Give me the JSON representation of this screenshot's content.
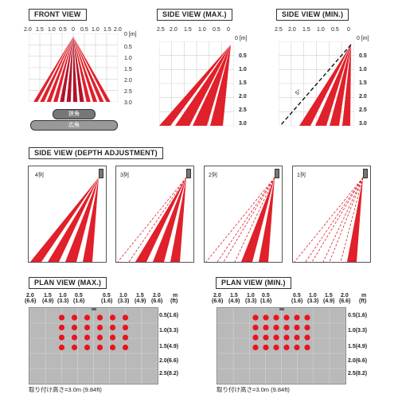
{
  "front_view": {
    "title": "FRONT VIEW",
    "x_ticks": [
      "2.0",
      "1.5",
      "1.0",
      "0.5",
      "0",
      "0.5",
      "1.0",
      "1.5",
      "2.0"
    ],
    "x_unit": "0 [m]",
    "y_ticks": [
      "0.5",
      "1.0",
      "1.5",
      "2.0",
      "2.5",
      "3.0"
    ],
    "narrow_label": "狭角",
    "wide_label": "広角"
  },
  "side_view_max": {
    "title": "SIDE VIEW (MAX.)",
    "x_ticks": [
      "2.5",
      "2.0",
      "1.5",
      "1.0",
      "0.5",
      "0"
    ],
    "x_unit": "0 [m]",
    "y_ticks": [
      "0.5",
      "1.0",
      "1.5",
      "2.0",
      "2.5",
      "3.0"
    ]
  },
  "side_view_min": {
    "title": "SIDE VIEW (MIN.)",
    "x_ticks": [
      "2.5",
      "2.0",
      "1.5",
      "1.0",
      "0.5",
      "0"
    ],
    "x_unit": "0 [m]",
    "y_ticks": [
      "0.5",
      "1.0",
      "1.5",
      "2.0",
      "2.5",
      "3.0"
    ],
    "angle_label": "5°"
  },
  "depth_adjustment": {
    "title": "SIDE VIEW (DEPTH ADJUSTMENT)",
    "panels": [
      {
        "label": "4列",
        "rows": 4
      },
      {
        "label": "3列",
        "rows": 3
      },
      {
        "label": "2列",
        "rows": 2
      },
      {
        "label": "1列",
        "rows": 1
      }
    ]
  },
  "plan_view_max": {
    "title": "PLAN VIEW (MAX.)",
    "x_ticks": [
      {
        "m": "2.0",
        "ft": "(6.6)"
      },
      {
        "m": "1.5",
        "ft": "(4.9)"
      },
      {
        "m": "1.0",
        "ft": "(3.3)"
      },
      {
        "m": "0.5",
        "ft": "(1.6)"
      },
      {
        "m": "0.5",
        "ft": "(1.6)"
      },
      {
        "m": "1.0",
        "ft": "(3.3)"
      },
      {
        "m": "1.5",
        "ft": "(4.9)"
      },
      {
        "m": "2.0",
        "ft": "(6.6)"
      }
    ],
    "unit_m": "m",
    "unit_ft": "(ft)",
    "y_ticks": [
      "0.5(1.6)",
      "1.0(3.3)",
      "1.5(4.9)",
      "2.0(6.6)",
      "2.5(8.2)"
    ],
    "dot_rows": [
      6,
      6,
      6,
      6
    ],
    "mount_height": "取り付け高さ=3.0m (9.84ft)"
  },
  "plan_view_min": {
    "title": "PLAN VIEW (MIN.)",
    "x_ticks": [
      {
        "m": "2.0",
        "ft": "(6.6)"
      },
      {
        "m": "1.5",
        "ft": "(4.9)"
      },
      {
        "m": "1.0",
        "ft": "(3.3)"
      },
      {
        "m": "0.5",
        "ft": "(1.6)"
      },
      {
        "m": "0.5",
        "ft": "(1.6)"
      },
      {
        "m": "1.0",
        "ft": "(3.3)"
      },
      {
        "m": "1.5",
        "ft": "(4.9)"
      },
      {
        "m": "2.0",
        "ft": "(6.6)"
      }
    ],
    "unit_m": "m",
    "unit_ft": "(ft)",
    "y_ticks": [
      "0.5(1.6)",
      "1.0(3.3)",
      "1.5(4.9)",
      "2.0(6.6)",
      "2.5(8.2)"
    ],
    "dot_rows": [
      6,
      6,
      6,
      6
    ],
    "mount_height": "取り付け高さ=3.0m (9.84ft)"
  },
  "colors": {
    "beam": "#e0202a",
    "beam_dark": "#b3122a",
    "dot": "#e8141e",
    "grid": "#cfcfcf",
    "plan_bg": "#b9b9b9"
  }
}
